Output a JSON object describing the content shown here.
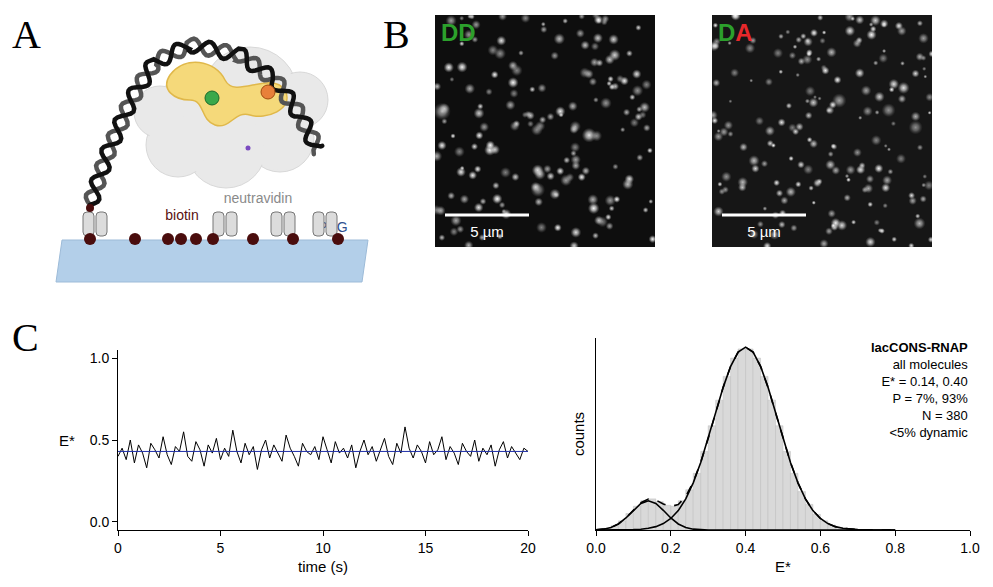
{
  "diagram": {
    "letter": "A",
    "protein_label": "neutravidin",
    "biotin_label": "biotin",
    "surface_label": "PEG"
  },
  "images": {
    "letter": "B",
    "scale_bar": "5 µm",
    "panels": [
      {
        "label": "DD",
        "label_colors": [
          "#2ca02c",
          "#2ca02c"
        ]
      },
      {
        "label": "DA",
        "label_colors": [
          "#2ca02c",
          "#e8282b"
        ]
      }
    ]
  },
  "chart_panel": {
    "letter": "C"
  },
  "chart_data": [
    {
      "type": "line",
      "xlabel": "time (s)",
      "ylabel": "E*",
      "xlim": [
        0,
        20
      ],
      "xticks": [
        0,
        5,
        10,
        15,
        20
      ],
      "ylim": [
        -0.05,
        1.05
      ],
      "yticks": [
        {
          "value": 0,
          "label": "0.0"
        },
        0.5,
        {
          "value": 1,
          "label": "1.0"
        }
      ],
      "grid": false,
      "x": [
        0,
        0.2,
        0.4,
        0.6,
        0.8,
        1,
        1.2,
        1.4,
        1.6,
        1.8,
        2,
        2.2,
        2.4,
        2.6,
        2.8,
        3,
        3.2,
        3.4,
        3.6,
        3.8,
        4,
        4.2,
        4.4,
        4.6,
        4.8,
        5,
        5.2,
        5.4,
        5.6,
        5.8,
        6,
        6.2,
        6.4,
        6.6,
        6.8,
        7,
        7.2,
        7.4,
        7.6,
        7.8,
        8,
        8.2,
        8.4,
        8.6,
        8.8,
        9,
        9.2,
        9.4,
        9.6,
        9.8,
        10,
        10.2,
        10.4,
        10.6,
        10.8,
        11,
        11.2,
        11.4,
        11.6,
        11.8,
        12,
        12.2,
        12.4,
        12.6,
        12.8,
        13,
        13.2,
        13.4,
        13.6,
        13.8,
        14,
        14.2,
        14.4,
        14.6,
        14.8,
        15,
        15.2,
        15.4,
        15.6,
        15.8,
        16,
        16.2,
        16.4,
        16.6,
        16.8,
        17,
        17.2,
        17.4,
        17.6,
        17.8,
        18,
        18.2,
        18.4,
        18.6,
        18.8,
        19,
        19.2,
        19.4,
        19.6,
        19.8,
        20
      ],
      "series": [
        {
          "color": "#000000",
          "line_style": "solid",
          "values": [
            0.4,
            0.45,
            0.38,
            0.5,
            0.36,
            0.47,
            0.42,
            0.33,
            0.48,
            0.44,
            0.39,
            0.52,
            0.41,
            0.35,
            0.46,
            0.43,
            0.55,
            0.4,
            0.37,
            0.49,
            0.44,
            0.34,
            0.47,
            0.42,
            0.51,
            0.38,
            0.45,
            0.4,
            0.56,
            0.43,
            0.36,
            0.48,
            0.41,
            0.46,
            0.32,
            0.44,
            0.5,
            0.39,
            0.47,
            0.42,
            0.37,
            0.53,
            0.45,
            0.4,
            0.34,
            0.48,
            0.43,
            0.41,
            0.46,
            0.38,
            0.52,
            0.44,
            0.36,
            0.49,
            0.42,
            0.45,
            0.39,
            0.47,
            0.33,
            0.43,
            0.5,
            0.41,
            0.46,
            0.37,
            0.44,
            0.51,
            0.4,
            0.35,
            0.48,
            0.42,
            0.58,
            0.45,
            0.39,
            0.47,
            0.43,
            0.36,
            0.49,
            0.41,
            0.44,
            0.52,
            0.38,
            0.46,
            0.42,
            0.35,
            0.48,
            0.43,
            0.4,
            0.5,
            0.37,
            0.45,
            0.41,
            0.47,
            0.34,
            0.44,
            0.49,
            0.39,
            0.46,
            0.42,
            0.38,
            0.45,
            0.43
          ]
        },
        {
          "color": "#1f2fa8",
          "line_style": "solid",
          "x": [
            0,
            20
          ],
          "values": [
            0.43,
            0.43
          ]
        }
      ]
    },
    {
      "type": "histogram",
      "xlabel": "E*",
      "ylabel": "counts",
      "xlim": [
        0,
        1
      ],
      "xticks": [
        {
          "value": 0,
          "label": "0.0"
        },
        0.2,
        0.4,
        0.6,
        0.8,
        {
          "value": 1,
          "label": "1.0"
        }
      ],
      "ylim": [
        0,
        105
      ],
      "tick_labels": "x",
      "grid": false,
      "color": "#d9d9d9",
      "bins": [
        0,
        0.02,
        0.04,
        0.06,
        0.08,
        0.1,
        0.12,
        0.14,
        0.16,
        0.18,
        0.2,
        0.22,
        0.24,
        0.26,
        0.28,
        0.3,
        0.32,
        0.34,
        0.36,
        0.38,
        0.4,
        0.42,
        0.44,
        0.46,
        0.48,
        0.5,
        0.52,
        0.54,
        0.56,
        0.58,
        0.6,
        0.62,
        0.64,
        0.66,
        0.68,
        0.7,
        0.72,
        0.74,
        0.76,
        0.78,
        0.8
      ],
      "counts": [
        0.2,
        0.9,
        2.3,
        5,
        9,
        13,
        16,
        17,
        15.5,
        13.5,
        13,
        16,
        22,
        31,
        43,
        57,
        71,
        84,
        94,
        99,
        99,
        94,
        84,
        71,
        57,
        43,
        31,
        21,
        14,
        8.5,
        5,
        2.7,
        1.4,
        0.7,
        0.3,
        0.15,
        0.05,
        0,
        0,
        0
      ],
      "x": [
        0,
        0.02,
        0.04,
        0.06,
        0.08,
        0.1,
        0.12,
        0.14,
        0.16,
        0.18,
        0.2,
        0.22,
        0.24,
        0.26,
        0.28,
        0.3,
        0.32,
        0.34,
        0.36,
        0.38,
        0.4,
        0.42,
        0.44,
        0.46,
        0.48,
        0.5,
        0.52,
        0.54,
        0.56,
        0.58,
        0.6,
        0.62,
        0.64,
        0.66,
        0.68,
        0.7,
        0.72,
        0.74,
        0.76,
        0.78,
        0.8
      ],
      "series": [
        {
          "type": "line",
          "color": "#000000",
          "line_style": "solid",
          "values": [
            0.13,
            0.46,
            1.36,
            3.3,
            6.58,
            10.78,
            14.5,
            16,
            14.5,
            10.78,
            6.58,
            3.3,
            1.36,
            0.46,
            0.13,
            0.03,
            0.01,
            0,
            0,
            0,
            0,
            0,
            0,
            0,
            0,
            0,
            0,
            0,
            0,
            0,
            0,
            0,
            0,
            0,
            0,
            0,
            0,
            0,
            0,
            0,
            0
          ]
        },
        {
          "type": "line",
          "color": "#000000",
          "line_style": "solid",
          "values": [
            0,
            0,
            0.01,
            0.03,
            0.08,
            0.2,
            0.44,
            0.93,
            1.85,
            3.5,
            6.3,
            10.6,
            17,
            25.8,
            36.9,
            50,
            64.2,
            78,
            89.5,
            97.3,
            100,
            97.3,
            89.5,
            78,
            64.2,
            50,
            36.9,
            25.8,
            17,
            10.6,
            6.3,
            3.5,
            1.85,
            0.93,
            0.44,
            0.2,
            0.08,
            0.03,
            0.01,
            0,
            0
          ]
        },
        {
          "type": "line",
          "color": "#000000",
          "line_style": "dashed",
          "values": [
            0.13,
            0.46,
            1.37,
            3.33,
            6.66,
            10.98,
            14.94,
            16.93,
            16.35,
            14.28,
            12.88,
            13.9,
            18.36,
            26.26,
            37.03,
            50.03,
            64.21,
            78,
            89.5,
            97.3,
            100,
            97.3,
            89.5,
            78,
            64.2,
            50,
            36.9,
            25.8,
            17,
            10.6,
            6.3,
            3.5,
            1.85,
            0.93,
            0.44,
            0.2,
            0.08,
            0.03,
            0.01,
            0,
            0
          ]
        }
      ],
      "annotations": [
        "lacCONS-RNAP",
        "all molecules",
        "E* = 0.14, 0.40",
        "P = 7%, 93%",
        "N = 380",
        "<5% dynamic"
      ]
    }
  ]
}
